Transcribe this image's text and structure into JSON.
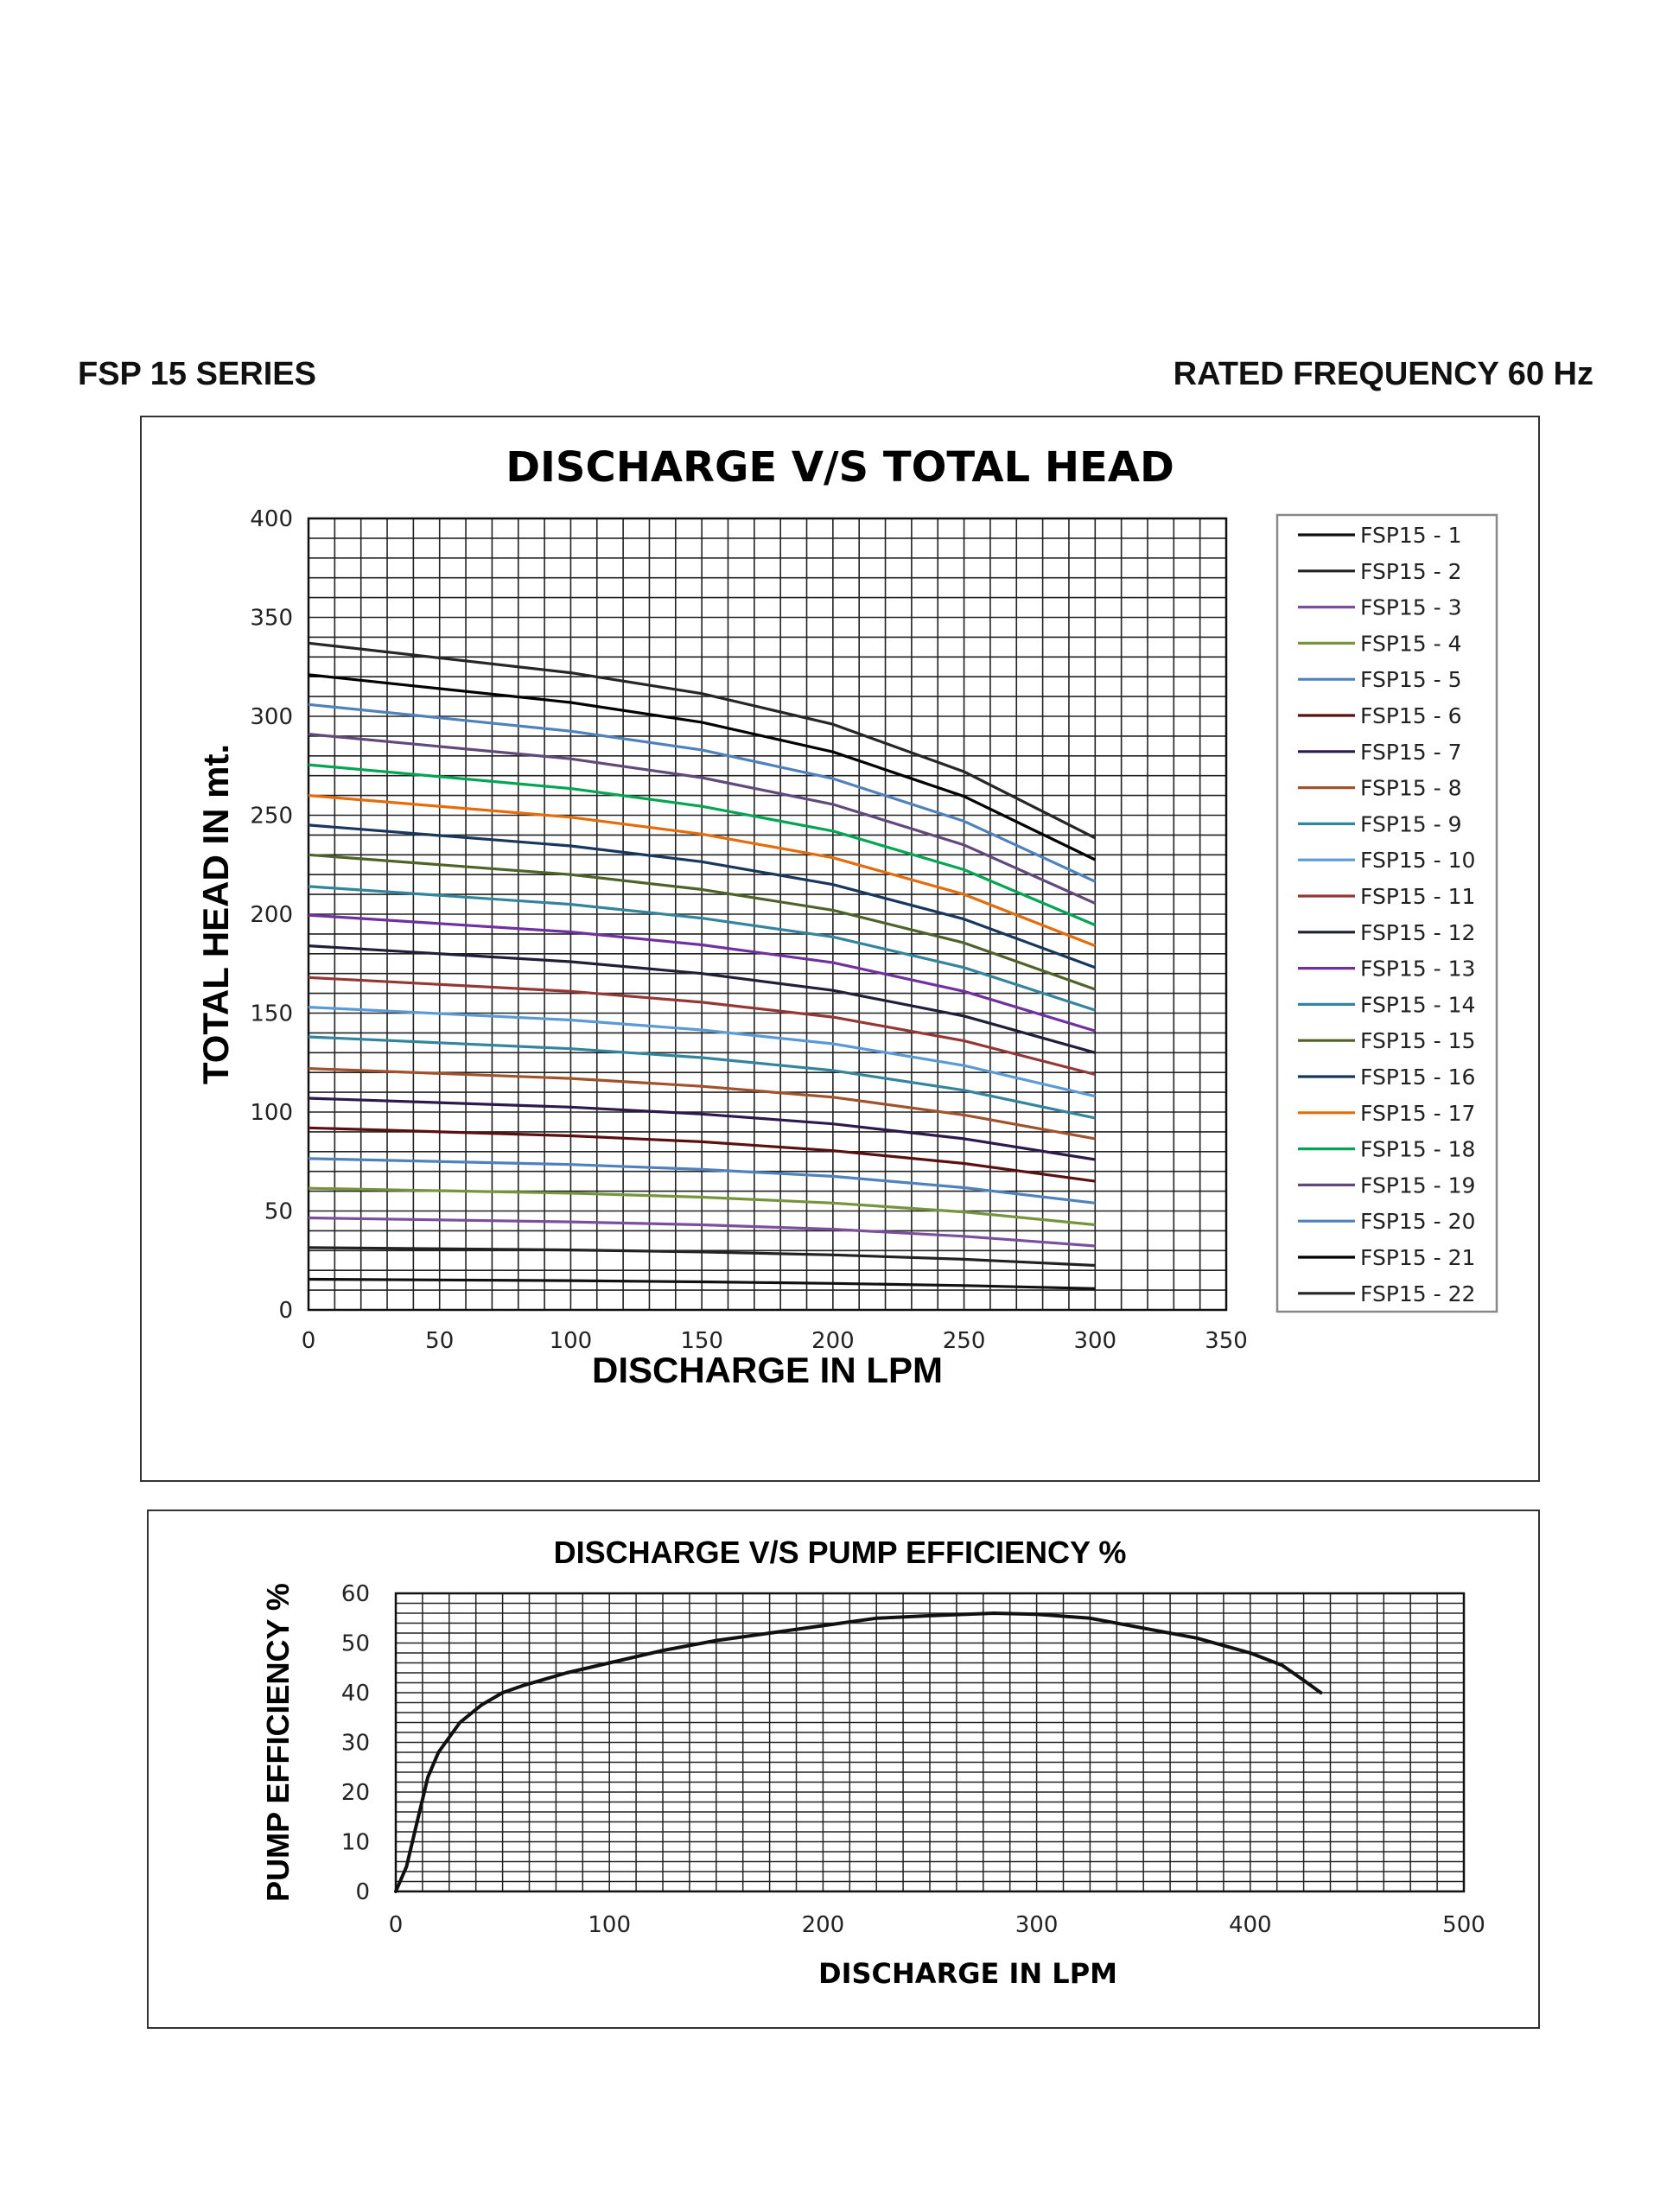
{
  "header": {
    "left": "FSP 15 SERIES",
    "right": "RATED FREQUENCY 60 Hz"
  },
  "chart_data": [
    {
      "type": "line",
      "title": "DISCHARGE V/S TOTAL HEAD",
      "xlabel": "DISCHARGE IN LPM",
      "ylabel": "TOTAL HEAD IN mt.",
      "xlim": [
        0,
        350
      ],
      "ylim": [
        0,
        400
      ],
      "xticks": [
        0,
        50,
        100,
        150,
        200,
        250,
        300,
        350
      ],
      "yticks": [
        0,
        50,
        100,
        150,
        200,
        250,
        300,
        350,
        400
      ],
      "grid": true,
      "legend_position": "right",
      "x": [
        0,
        100,
        150,
        200,
        250,
        300
      ],
      "series": [
        {
          "name": "FSP15 - 1",
          "color": "#111111",
          "values": [
            15.5,
            14.8,
            14.2,
            13.4,
            12.3,
            10.8
          ]
        },
        {
          "name": "FSP15 - 2",
          "color": "#222222",
          "values": [
            31.5,
            30.3,
            29.3,
            27.8,
            25.6,
            22.5
          ]
        },
        {
          "name": "FSP15 - 3",
          "color": "#7b4f9e",
          "values": [
            46.5,
            44.5,
            43.0,
            40.8,
            37.2,
            32.3
          ]
        },
        {
          "name": "FSP15 - 4",
          "color": "#77933c",
          "values": [
            61.5,
            59.0,
            57.0,
            54.0,
            49.5,
            43.0
          ]
        },
        {
          "name": "FSP15 - 5",
          "color": "#4f81bd",
          "values": [
            76.5,
            73.5,
            71.0,
            67.5,
            61.8,
            54.0
          ]
        },
        {
          "name": "FSP15 - 6",
          "color": "#5a1010",
          "values": [
            92.0,
            88.0,
            85.0,
            80.5,
            74.0,
            65.0
          ]
        },
        {
          "name": "FSP15 - 7",
          "color": "#2d1a4d",
          "values": [
            107.0,
            102.5,
            99.0,
            94.0,
            86.5,
            76.0
          ]
        },
        {
          "name": "FSP15 - 8",
          "color": "#a0522d",
          "values": [
            122.0,
            117.0,
            113.0,
            107.5,
            98.5,
            86.5
          ]
        },
        {
          "name": "FSP15 - 9",
          "color": "#31859c",
          "values": [
            138.0,
            132.0,
            127.5,
            121.0,
            111.0,
            97.0
          ]
        },
        {
          "name": "FSP15 - 10",
          "color": "#5b9bd5",
          "values": [
            153.0,
            146.5,
            141.5,
            134.5,
            123.5,
            108.0
          ]
        },
        {
          "name": "FSP15 - 11",
          "color": "#953735",
          "values": [
            168.0,
            161.0,
            155.5,
            148.0,
            136.0,
            119.0
          ]
        },
        {
          "name": "FSP15 - 12",
          "color": "#1f1f3a",
          "values": [
            184.0,
            176.0,
            170.0,
            161.5,
            148.5,
            130.0
          ]
        },
        {
          "name": "FSP15 - 13",
          "color": "#7030a0",
          "values": [
            199.5,
            191.0,
            184.5,
            175.5,
            161.0,
            141.0
          ]
        },
        {
          "name": "FSP15 - 14",
          "color": "#31859c",
          "values": [
            214.0,
            205.0,
            198.0,
            188.5,
            173.0,
            151.5
          ]
        },
        {
          "name": "FSP15 - 15",
          "color": "#4f6228",
          "values": [
            230.0,
            220.0,
            212.5,
            202.0,
            185.5,
            162.0
          ]
        },
        {
          "name": "FSP15 - 16",
          "color": "#17375e",
          "values": [
            245.0,
            234.5,
            226.5,
            215.0,
            197.5,
            173.0
          ]
        },
        {
          "name": "FSP15 - 17",
          "color": "#e46c0a",
          "values": [
            260.0,
            249.0,
            240.5,
            228.5,
            210.0,
            184.0
          ]
        },
        {
          "name": "FSP15 - 18",
          "color": "#00a651",
          "values": [
            275.5,
            263.5,
            254.5,
            242.0,
            222.5,
            194.5
          ]
        },
        {
          "name": "FSP15 - 19",
          "color": "#604a7b",
          "values": [
            291.0,
            278.5,
            269.0,
            255.5,
            235.0,
            205.5
          ]
        },
        {
          "name": "FSP15 - 20",
          "color": "#4f81bd",
          "values": [
            306.0,
            292.5,
            283.0,
            268.5,
            247.0,
            216.5
          ]
        },
        {
          "name": "FSP15 - 21",
          "color": "#000000",
          "values": [
            321.0,
            307.0,
            297.0,
            282.0,
            259.5,
            227.5
          ]
        },
        {
          "name": "FSP15 - 22",
          "color": "#262626",
          "values": [
            337.0,
            322.0,
            311.5,
            296.0,
            272.0,
            238.5
          ]
        }
      ]
    },
    {
      "type": "line",
      "title": "DISCHARGE V/S PUMP EFFICIENCY %",
      "xlabel": "DISCHARGE IN LPM",
      "ylabel": "PUMP EFFICIENCY %",
      "xlim": [
        0,
        500
      ],
      "ylim": [
        0,
        60
      ],
      "xticks": [
        0,
        100,
        200,
        300,
        400,
        500
      ],
      "yticks": [
        0,
        10,
        20,
        30,
        40,
        50,
        60
      ],
      "grid": true,
      "series": [
        {
          "color": "#111111",
          "x": [
            0,
            5,
            10,
            15,
            20,
            30,
            40,
            50,
            60,
            80,
            100,
            125,
            150,
            175,
            200,
            225,
            250,
            280,
            300,
            325,
            350,
            375,
            400,
            415,
            425,
            433
          ],
          "values": [
            0,
            5,
            14,
            23,
            28,
            34,
            37.5,
            40,
            41.5,
            44,
            46,
            48.5,
            50.5,
            52,
            53.5,
            55,
            55.5,
            56,
            55.8,
            55,
            53,
            51,
            48,
            45.5,
            42.5,
            40
          ]
        }
      ]
    }
  ]
}
